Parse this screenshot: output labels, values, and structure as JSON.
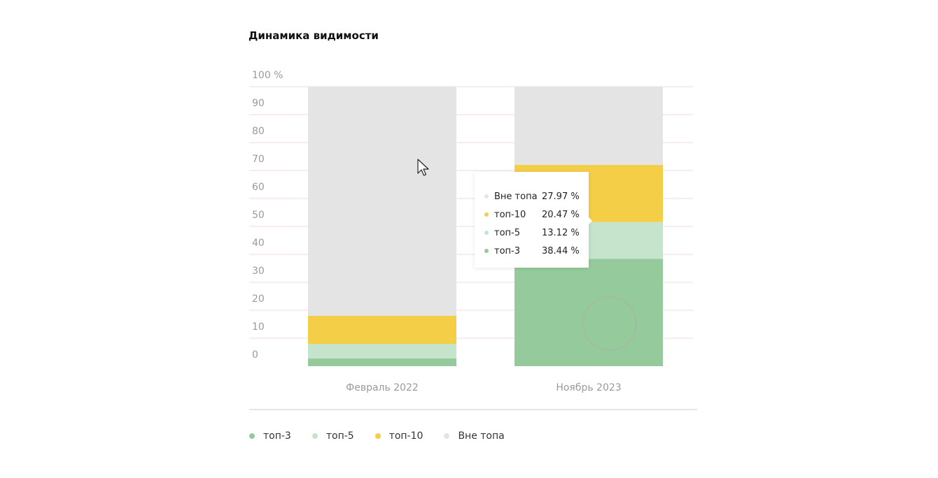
{
  "title": "Динамика видимости",
  "chart_data": {
    "type": "bar",
    "stacked": true,
    "categories": [
      "Февраль 2022",
      "Ноябрь 2023"
    ],
    "series": [
      {
        "name": "топ-3",
        "values": [
          2.8,
          38.44
        ],
        "color": "#95cb9c"
      },
      {
        "name": "топ-5",
        "values": [
          5.2,
          13.12
        ],
        "color": "#c5e4cb"
      },
      {
        "name": "топ-10",
        "values": [
          10.0,
          20.47
        ],
        "color": "#f5ce48"
      },
      {
        "name": "Вне топа",
        "values": [
          82.0,
          27.97
        ],
        "color": "#e4e4e4"
      }
    ],
    "y_ticks": [
      "0",
      "10",
      "20",
      "30",
      "40",
      "50",
      "60",
      "70",
      "80",
      "90",
      "100 %"
    ],
    "ylim": [
      0,
      100
    ],
    "grid": true,
    "legend_position": "bottom-left"
  },
  "legend": [
    {
      "label": "топ-3",
      "color": "#95cb9c"
    },
    {
      "label": "топ-5",
      "color": "#c5e4cb"
    },
    {
      "label": "топ-10",
      "color": "#f5ce48"
    },
    {
      "label": "Вне топа",
      "color": "#e4e4e4"
    }
  ],
  "tooltip": {
    "rows": [
      {
        "name": "Вне топа",
        "value": "27.97 %",
        "color": "#e4e4e4"
      },
      {
        "name": "топ-10",
        "value": "20.47 %",
        "color": "#f5ce48"
      },
      {
        "name": "топ-5",
        "value": "13.12 %",
        "color": "#c5e4cb"
      },
      {
        "name": "топ-3",
        "value": "38.44 %",
        "color": "#95cb9c"
      }
    ]
  },
  "icons": {
    "cursor": "mouse-pointer-icon",
    "click_indicator": "click-ripple-icon"
  }
}
